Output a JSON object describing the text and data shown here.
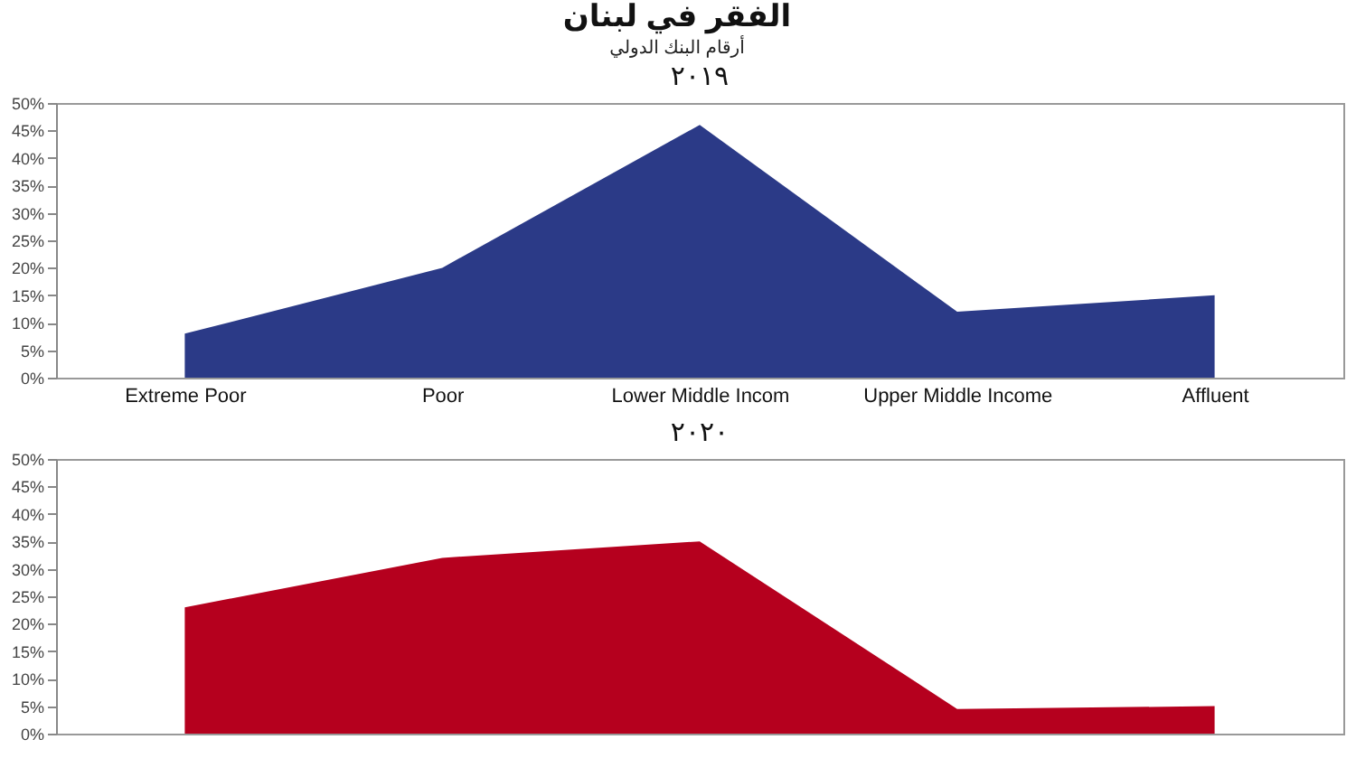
{
  "chart_data": [
    {
      "type": "area",
      "title": "الفقر في لبنان",
      "subtitle": "أرقام البنك الدولي",
      "categories": [
        "Extreme Poor",
        "Poor",
        "Lower Middle Incom",
        "Upper Middle Income",
        "Affluent"
      ],
      "series": [
        {
          "color": "#2b3a87",
          "values": [
            8,
            20,
            46,
            12,
            15
          ]
        }
      ],
      "annotations": [
        "٢٠١٩"
      ],
      "ylim": [
        0,
        50
      ],
      "yticks": [
        {
          "value": 0,
          "label": "0%"
        },
        {
          "value": 5,
          "label": "5%"
        },
        {
          "value": 10,
          "label": "10%"
        },
        {
          "value": 15,
          "label": "15%"
        },
        {
          "value": 20,
          "label": "20%"
        },
        {
          "value": 25,
          "label": "25%"
        },
        {
          "value": 30,
          "label": "30%"
        },
        {
          "value": 35,
          "label": "35%"
        },
        {
          "value": 40,
          "label": "40%"
        },
        {
          "value": 45,
          "label": "45%"
        },
        {
          "value": 50,
          "label": "50%"
        }
      ],
      "grid": false
    },
    {
      "type": "area",
      "categories": [
        null,
        null,
        null,
        null,
        null
      ],
      "series": [
        {
          "color": "#b5001e",
          "values": [
            23,
            32,
            35,
            4.5,
            5
          ]
        }
      ],
      "annotations": [
        "٢٠٢٠"
      ],
      "ylim": [
        0,
        50
      ],
      "yticks": [
        {
          "value": 0,
          "label": "0%"
        },
        {
          "value": 5,
          "label": "5%"
        },
        {
          "value": 10,
          "label": "10%"
        },
        {
          "value": 15,
          "label": "15%"
        },
        {
          "value": 20,
          "label": "20%"
        },
        {
          "value": 25,
          "label": "25%"
        },
        {
          "value": 30,
          "label": "30%"
        },
        {
          "value": 35,
          "label": "35%"
        },
        {
          "value": 40,
          "label": "40%"
        },
        {
          "value": 45,
          "label": "45%"
        },
        {
          "value": 50,
          "label": "50%"
        }
      ],
      "tick_labels": "y",
      "grid": false
    }
  ]
}
